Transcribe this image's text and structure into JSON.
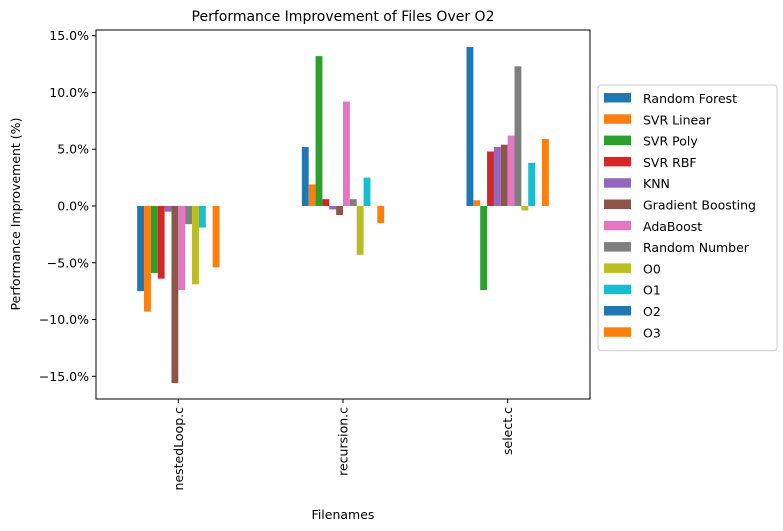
{
  "chart_data": {
    "type": "bar",
    "title": "Performance Improvement of Files Over O2",
    "xlabel": "Filenames",
    "ylabel": "Performance Improvement (%)",
    "ylim": [
      -17,
      15.5
    ],
    "yticks": [
      -15,
      -10,
      -5,
      0,
      5,
      10,
      15
    ],
    "ytick_labels": [
      "−15.0%",
      "−10.0%",
      "−5.0%",
      "0.0%",
      "5.0%",
      "10.0%",
      "15.0%"
    ],
    "grid": false,
    "legend_position": "right",
    "categories": [
      "nestedLoop.c",
      "recursion.c",
      "select.c"
    ],
    "series": [
      {
        "name": "Random Forest",
        "color": "#1f77b4",
        "values": [
          -7.5,
          5.2,
          14.0
        ]
      },
      {
        "name": "SVR Linear",
        "color": "#ff7f0e",
        "values": [
          -9.3,
          1.9,
          0.5
        ]
      },
      {
        "name": "SVR Poly",
        "color": "#2ca02c",
        "values": [
          -5.9,
          13.2,
          -7.4
        ]
      },
      {
        "name": "SVR RBF",
        "color": "#d62728",
        "values": [
          -6.4,
          0.6,
          4.8
        ]
      },
      {
        "name": "KNN",
        "color": "#9467bd",
        "values": [
          -0.5,
          -0.3,
          5.2
        ]
      },
      {
        "name": "Gradient Boosting",
        "color": "#8c564b",
        "values": [
          -15.6,
          -0.8,
          5.4
        ]
      },
      {
        "name": "AdaBoost",
        "color": "#e377c2",
        "values": [
          -7.4,
          9.2,
          6.2
        ]
      },
      {
        "name": "Random Number",
        "color": "#7f7f7f",
        "values": [
          -1.6,
          0.6,
          12.3
        ]
      },
      {
        "name": "O0",
        "color": "#bcbd22",
        "values": [
          -6.9,
          -4.3,
          -0.4
        ]
      },
      {
        "name": "O1",
        "color": "#17becf",
        "values": [
          -1.9,
          2.5,
          3.8
        ]
      },
      {
        "name": "O2",
        "color": "#1f77b4",
        "values": [
          0.0,
          0.0,
          0.0
        ]
      },
      {
        "name": "O3",
        "color": "#ff7f0e",
        "values": [
          -5.4,
          -1.5,
          5.9
        ]
      }
    ]
  }
}
